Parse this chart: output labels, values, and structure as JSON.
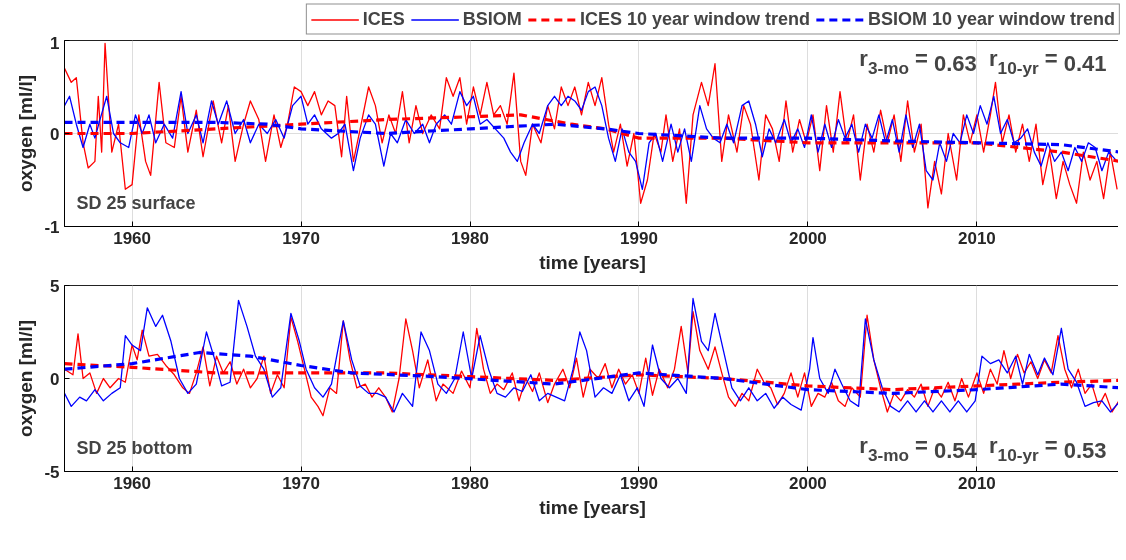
{
  "chart_data": [
    {
      "type": "line",
      "xlabel": "time [years]",
      "ylabel": "oxygen [ml/l]",
      "xlim": [
        1956,
        2018.5
      ],
      "ylim": [
        -1,
        1
      ],
      "xticks": [
        1960,
        1970,
        1980,
        1990,
        2000,
        2010
      ],
      "yticks": [
        -1,
        0,
        1
      ],
      "grid": true,
      "legend": "top",
      "annotations": [
        "SD 25 surface",
        "r$_{3-mo}$ = 0.63  r$_{10-yr}$ = 0.41"
      ],
      "series": [
        {
          "name": "ICES",
          "color": "#ff0000",
          "line_style": "solid",
          "x": [
            1956.0,
            1956.4,
            1956.7,
            1957.1,
            1957.4,
            1957.8,
            1958.0,
            1958.2,
            1958.4,
            1958.8,
            1959.2,
            1959.6,
            1960.0,
            1960.4,
            1960.8,
            1961.1,
            1961.6,
            1962.0,
            1962.5,
            1962.9,
            1963.3,
            1963.8,
            1964.2,
            1964.8,
            1965.3,
            1965.7,
            1966.1,
            1966.6,
            1967.0,
            1967.5,
            1967.9,
            1968.4,
            1968.8,
            1969.2,
            1969.6,
            1970.0,
            1970.4,
            1970.8,
            1971.2,
            1971.6,
            1972.0,
            1972.4,
            1972.7,
            1973.1,
            1973.5,
            1974.0,
            1974.4,
            1974.8,
            1975.2,
            1975.6,
            1976.0,
            1976.4,
            1976.8,
            1977.2,
            1977.7,
            1978.2,
            1978.6,
            1979.0,
            1979.4,
            1979.8,
            1980.2,
            1980.6,
            1981.0,
            1981.4,
            1981.8,
            1982.2,
            1982.6,
            1983.0,
            1983.3,
            1983.7,
            1984.2,
            1984.6,
            1985.0,
            1985.4,
            1985.8,
            1986.2,
            1986.6,
            1987.0,
            1987.4,
            1987.8,
            1988.2,
            1988.5,
            1988.9,
            1989.3,
            1989.7,
            1990.1,
            1990.5,
            1990.9,
            1991.3,
            1991.6,
            1992.0,
            1992.4,
            1992.8,
            1993.2,
            1993.7,
            1994.1,
            1994.5,
            1994.9,
            1995.3,
            1995.8,
            1996.2,
            1996.6,
            1997.1,
            1997.5,
            1997.9,
            1998.3,
            1998.7,
            1999.1,
            1999.5,
            1999.9,
            2000.3,
            2000.7,
            2001.1,
            2001.5,
            2001.9,
            2002.3,
            2002.7,
            2003.1,
            2003.5,
            2003.9,
            2004.3,
            2004.7,
            2005.1,
            2005.5,
            2005.9,
            2006.3,
            2006.7,
            2007.1,
            2007.5,
            2007.9,
            2008.3,
            2008.8,
            2009.2,
            2009.6,
            2010.0,
            2010.4,
            2010.8,
            2011.1,
            2011.5,
            2011.9,
            2012.3,
            2012.7,
            2013.1,
            2013.5,
            2013.9,
            2014.3,
            2014.7,
            2015.1,
            2015.5,
            2015.9,
            2016.3,
            2016.7,
            2017.1,
            2017.5,
            2017.9,
            2018.3
          ],
          "values": [
            0.7,
            0.55,
            0.6,
            -0.1,
            -0.37,
            -0.3,
            0.4,
            -0.2,
            0.97,
            -0.2,
            0.1,
            -0.6,
            -0.55,
            0.2,
            -0.3,
            -0.45,
            0.55,
            -0.1,
            -0.15,
            0.4,
            -0.2,
            0.25,
            -0.25,
            0.35,
            -0.1,
            0.3,
            -0.3,
            0.1,
            0.35,
            0.15,
            -0.3,
            0.2,
            -0.15,
            0.1,
            0.5,
            0.45,
            0.3,
            0.45,
            0.2,
            0.35,
            0.3,
            -0.25,
            0.4,
            -0.3,
            0.05,
            0.5,
            0.3,
            -0.1,
            0.2,
            0.0,
            0.45,
            -0.1,
            0.3,
            0.0,
            0.2,
            0.05,
            0.6,
            0.4,
            0.6,
            0.1,
            0.5,
            0.2,
            0.55,
            0.2,
            0.3,
            0.1,
            0.65,
            -0.3,
            -0.45,
            0.1,
            -0.1,
            0.3,
            0.05,
            0.5,
            0.3,
            0.5,
            0.2,
            0.55,
            0.3,
            0.6,
            0.1,
            -0.2,
            0.1,
            -0.35,
            0.0,
            -0.75,
            -0.5,
            0.0,
            -0.2,
            0.2,
            -0.3,
            0.05,
            -0.75,
            0.2,
            0.55,
            0.3,
            0.75,
            -0.3,
            0.2,
            -0.2,
            0.3,
            0.1,
            -0.5,
            0.2,
            0.05,
            -0.3,
            0.35,
            -0.2,
            0.15,
            -0.1,
            0.2,
            -0.4,
            0.3,
            -0.2,
            0.45,
            -0.1,
            0.2,
            -0.5,
            0.1,
            -0.2,
            0.25,
            -0.1,
            0.2,
            -0.3,
            0.35,
            -0.2,
            0.1,
            -0.8,
            -0.3,
            -0.65,
            0.0,
            -0.5,
            0.2,
            -0.1,
            0.2,
            -0.2,
            0.2,
            0.55,
            -0.1,
            0.2,
            -0.2,
            0.1,
            -0.3,
            0.1,
            -0.55,
            -0.2,
            -0.7,
            -0.3,
            -0.55,
            -0.75,
            -0.2,
            -0.5,
            -0.3,
            -0.7,
            -0.2,
            -0.6
          ]
        },
        {
          "name": "BSIOM",
          "color": "#0000ff",
          "line_style": "solid",
          "x": [
            1956.0,
            1956.3,
            1956.7,
            1957.1,
            1957.5,
            1957.8,
            1958.1,
            1958.5,
            1958.9,
            1959.3,
            1959.8,
            1960.2,
            1960.6,
            1961.0,
            1961.4,
            1961.9,
            1962.4,
            1962.9,
            1963.3,
            1963.8,
            1964.2,
            1964.7,
            1965.1,
            1965.6,
            1966.1,
            1966.6,
            1967.0,
            1967.5,
            1968.0,
            1968.5,
            1969.0,
            1969.5,
            1970.0,
            1970.4,
            1970.8,
            1971.2,
            1971.8,
            1972.2,
            1972.6,
            1973.1,
            1973.5,
            1974.0,
            1974.4,
            1974.9,
            1975.3,
            1975.7,
            1976.2,
            1976.7,
            1977.2,
            1977.6,
            1978.0,
            1978.5,
            1978.9,
            1979.4,
            1979.8,
            1980.2,
            1980.6,
            1981.0,
            1981.5,
            1982.0,
            1982.4,
            1982.8,
            1983.2,
            1983.7,
            1984.1,
            1984.6,
            1985.0,
            1985.4,
            1985.8,
            1986.2,
            1986.6,
            1987.0,
            1987.4,
            1987.8,
            1988.2,
            1988.6,
            1989.0,
            1989.4,
            1989.8,
            1990.2,
            1990.6,
            1991.0,
            1991.4,
            1991.9,
            1992.3,
            1992.7,
            1993.1,
            1993.6,
            1994.0,
            1994.4,
            1994.8,
            1995.2,
            1995.6,
            1996.1,
            1996.5,
            1996.9,
            1997.3,
            1997.7,
            1998.1,
            1998.6,
            1999.0,
            1999.4,
            1999.8,
            2000.2,
            2000.6,
            2001.0,
            2001.4,
            2001.8,
            2002.2,
            2002.6,
            2003.0,
            2003.4,
            2003.8,
            2004.2,
            2004.6,
            2005.0,
            2005.4,
            2005.8,
            2006.2,
            2006.6,
            2007.0,
            2007.4,
            2007.8,
            2008.2,
            2008.6,
            2009.0,
            2009.4,
            2009.8,
            2010.2,
            2010.6,
            2011.0,
            2011.4,
            2011.8,
            2012.2,
            2012.6,
            2013.0,
            2013.4,
            2013.8,
            2014.2,
            2014.6,
            2015.0,
            2015.4,
            2015.8,
            2016.2,
            2016.6,
            2017.0,
            2017.4,
            2017.8,
            2018.3
          ],
          "values": [
            0.3,
            0.4,
            0.1,
            -0.15,
            0.1,
            -0.05,
            0.15,
            0.4,
            0.0,
            -0.1,
            -0.15,
            0.2,
            0.0,
            0.2,
            -0.1,
            0.1,
            -0.05,
            0.45,
            0.0,
            0.2,
            -0.1,
            0.35,
            0.1,
            0.35,
            0.0,
            0.15,
            -0.1,
            0.1,
            0.0,
            0.15,
            -0.05,
            0.3,
            0.4,
            0.1,
            0.2,
            0.05,
            -0.05,
            0.0,
            0.1,
            -0.4,
            -0.05,
            0.2,
            0.1,
            -0.35,
            0.0,
            -0.1,
            0.15,
            0.0,
            0.1,
            -0.1,
            0.1,
            0.2,
            0.1,
            0.45,
            0.3,
            0.4,
            0.1,
            0.15,
            0.05,
            -0.05,
            -0.2,
            -0.3,
            -0.1,
            0.1,
            0.0,
            0.3,
            0.4,
            0.3,
            0.4,
            0.35,
            0.25,
            0.45,
            0.5,
            0.3,
            -0.05,
            -0.3,
            0.05,
            -0.2,
            -0.3,
            -0.6,
            -0.1,
            0.0,
            -0.3,
            0.1,
            -0.2,
            0.05,
            -0.3,
            0.3,
            0.05,
            -0.05,
            -0.1,
            0.1,
            -0.1,
            0.3,
            0.35,
            0.1,
            -0.25,
            0.05,
            -0.1,
            0.15,
            -0.1,
            0.05,
            -0.15,
            0.2,
            -0.2,
            0.1,
            -0.15,
            0.15,
            -0.05,
            0.1,
            -0.2,
            0.1,
            -0.05,
            0.2,
            -0.1,
            0.15,
            -0.2,
            0.2,
            -0.15,
            0.1,
            -0.4,
            -0.5,
            -0.1,
            -0.3,
            0.0,
            -0.1,
            0.2,
            0.0,
            0.3,
            0.1,
            0.4,
            0.0,
            0.15,
            -0.1,
            -0.05,
            0.05,
            -0.2,
            -0.35,
            -0.1,
            -0.3,
            -0.2,
            -0.4,
            -0.15,
            -0.3,
            -0.1,
            -0.15,
            -0.4,
            -0.2,
            -0.3
          ]
        },
        {
          "name": "ICES 10 year window trend",
          "color": "#ff0000",
          "line_style": "dashed",
          "x": [
            1956,
            1960,
            1965,
            1970,
            1975,
            1980,
            1983,
            1986,
            1988,
            1990,
            1995,
            2000,
            2005,
            2010,
            2015,
            2018.5
          ],
          "values": [
            0.0,
            0.0,
            0.05,
            0.1,
            0.15,
            0.18,
            0.2,
            0.1,
            0.05,
            -0.05,
            -0.05,
            -0.1,
            -0.1,
            -0.1,
            -0.2,
            -0.3
          ]
        },
        {
          "name": "BSIOM 10 year window trend",
          "color": "#0000ff",
          "line_style": "dashed",
          "x": [
            1956,
            1960,
            1965,
            1968,
            1970,
            1975,
            1980,
            1985,
            1988,
            1990,
            1995,
            2000,
            2005,
            2010,
            2015,
            2018.5
          ],
          "values": [
            0.12,
            0.12,
            0.12,
            0.1,
            0.05,
            0.0,
            0.05,
            0.1,
            0.05,
            0.0,
            -0.05,
            -0.05,
            -0.08,
            -0.1,
            -0.12,
            -0.2
          ]
        }
      ]
    },
    {
      "type": "line",
      "xlabel": "time [years]",
      "ylabel": "oxygen [ml/l]",
      "xlim": [
        1956,
        2018.5
      ],
      "ylim": [
        -5,
        5
      ],
      "xticks": [
        1960,
        1970,
        1980,
        1990,
        2000,
        2010
      ],
      "yticks": [
        -5,
        0,
        5
      ],
      "grid": true,
      "annotations": [
        "SD 25 bottom",
        "r$_{3-mo}$ = 0.54  r$_{10-yr}$ = 0.53"
      ],
      "series": [
        {
          "color": "#ff0000",
          "line_style": "solid",
          "x": [
            1956.0,
            1956.5,
            1956.8,
            1957.1,
            1957.5,
            1957.9,
            1958.3,
            1958.7,
            1959.2,
            1959.6,
            1960.0,
            1960.3,
            1960.6,
            1961.0,
            1961.5,
            1962.0,
            1962.5,
            1963.0,
            1963.4,
            1963.8,
            1964.2,
            1964.6,
            1965.0,
            1965.4,
            1965.8,
            1966.2,
            1966.6,
            1967.0,
            1967.4,
            1967.8,
            1968.2,
            1968.6,
            1969.0,
            1969.4,
            1969.8,
            1970.2,
            1970.6,
            1971.0,
            1971.3,
            1971.7,
            1972.1,
            1972.5,
            1972.9,
            1973.3,
            1973.8,
            1974.2,
            1974.6,
            1975.0,
            1975.4,
            1975.8,
            1976.2,
            1976.6,
            1977.0,
            1977.5,
            1978.0,
            1978.4,
            1979.0,
            1979.5,
            1980.0,
            1980.4,
            1980.8,
            1981.2,
            1981.6,
            1982.0,
            1982.5,
            1982.9,
            1983.3,
            1983.7,
            1984.1,
            1984.6,
            1985.0,
            1985.5,
            1985.9,
            1986.3,
            1986.7,
            1987.1,
            1987.6,
            1988.0,
            1988.4,
            1988.8,
            1989.2,
            1989.6,
            1990.0,
            1990.4,
            1990.8,
            1991.2,
            1991.7,
            1992.1,
            1992.5,
            1992.9,
            1993.2,
            1993.6,
            1994.1,
            1994.5,
            1994.9,
            1995.3,
            1995.7,
            1996.1,
            1996.5,
            1997.0,
            1997.4,
            1997.8,
            1998.2,
            1998.6,
            1999.0,
            1999.4,
            1999.8,
            2000.2,
            2000.6,
            2001.0,
            2001.4,
            2001.8,
            2002.2,
            2002.6,
            2003.1,
            2003.5,
            2003.9,
            2004.3,
            2004.7,
            2005.1,
            2005.5,
            2005.9,
            2006.3,
            2006.7,
            2007.1,
            2007.5,
            2007.9,
            2008.3,
            2008.7,
            2009.1,
            2009.5,
            2010.0,
            2010.4,
            2010.8,
            2011.2,
            2011.6,
            2012.0,
            2012.4,
            2012.8,
            2013.2,
            2013.6,
            2014.0,
            2014.4,
            2014.8,
            2015.2,
            2015.6,
            2016.0,
            2016.4,
            2016.8,
            2017.2,
            2017.6,
            2018.0,
            2018.4
          ],
          "values": [
            0.5,
            0.2,
            2.4,
            0.0,
            0.3,
            -0.8,
            0.0,
            -0.5,
            0.0,
            -0.2,
            1.8,
            1.0,
            2.6,
            1.2,
            1.3,
            0.7,
            0.2,
            -0.5,
            -0.8,
            0.3,
            1.7,
            -0.4,
            1.2,
            0.3,
            0.9,
            -0.3,
            0.5,
            -0.5,
            0.0,
            1.2,
            -0.8,
            0.2,
            -0.5,
            3.3,
            2.0,
            0.5,
            -1.0,
            -1.5,
            -2.0,
            -0.5,
            -0.8,
            3.1,
            1.0,
            -0.5,
            -0.3,
            -1.0,
            -0.5,
            -1.0,
            -1.8,
            0.0,
            3.2,
            1.5,
            -0.5,
            1.0,
            -1.2,
            -0.3,
            -0.8,
            0.4,
            -0.5,
            2.7,
            0.5,
            -0.8,
            -0.3,
            -0.6,
            0.3,
            -1.2,
            0.0,
            -0.7,
            0.3,
            -1.3,
            -0.3,
            0.5,
            -0.5,
            1.1,
            -1.0,
            0.5,
            0.0,
            0.8,
            -0.5,
            0.5,
            -0.3,
            0.2,
            -0.8,
            1.1,
            -0.9,
            0.5,
            -0.5,
            0.5,
            2.8,
            0.3,
            3.6,
            1.5,
            0.5,
            1.7,
            0.3,
            -1.0,
            -1.5,
            -0.8,
            -1.2,
            0.5,
            -0.2,
            -0.5,
            -1.4,
            -0.8,
            0.3,
            -1.0,
            0.3,
            -1.5,
            -0.8,
            -1.0,
            -0.2,
            -1.2,
            -1.5,
            -0.5,
            -1.0,
            3.4,
            1.0,
            -0.5,
            -1.8,
            -0.8,
            -1.2,
            -0.6,
            -1.0,
            -0.3,
            -1.5,
            -0.5,
            -1.0,
            -0.2,
            -1.2,
            0.0,
            -1.0,
            0.3,
            -0.8,
            0.5,
            -0.3,
            1.5,
            0.0,
            1.3,
            0.3,
            0.9,
            0.0,
            1.0,
            0.3,
            2.3,
            0.5,
            -0.5,
            0.5,
            -0.8,
            -0.3,
            -1.5,
            -0.8,
            -1.8,
            -1.2
          ]
        },
        {
          "color": "#0000ff",
          "line_style": "solid",
          "x": [
            1956.0,
            1956.4,
            1956.9,
            1957.3,
            1957.8,
            1958.3,
            1958.8,
            1959.3,
            1959.6,
            1960.0,
            1960.5,
            1960.9,
            1961.4,
            1961.8,
            1962.3,
            1962.8,
            1963.3,
            1963.8,
            1964.4,
            1964.9,
            1965.3,
            1965.8,
            1966.3,
            1966.8,
            1967.3,
            1967.8,
            1968.3,
            1968.8,
            1969.4,
            1969.9,
            1970.3,
            1970.8,
            1971.3,
            1971.8,
            1972.5,
            1973.0,
            1973.5,
            1974.0,
            1974.5,
            1975.0,
            1975.5,
            1976.0,
            1976.6,
            1977.1,
            1977.6,
            1978.1,
            1978.6,
            1979.1,
            1979.6,
            1980.1,
            1980.6,
            1981.1,
            1981.6,
            1982.1,
            1982.6,
            1983.1,
            1983.6,
            1984.1,
            1984.6,
            1985.1,
            1985.6,
            1986.1,
            1986.5,
            1986.9,
            1987.4,
            1987.9,
            1988.4,
            1988.9,
            1989.4,
            1989.9,
            1990.3,
            1990.8,
            1991.3,
            1991.8,
            1992.3,
            1992.8,
            1993.2,
            1993.7,
            1994.1,
            1994.5,
            1995.0,
            1995.5,
            1996.0,
            1996.5,
            1997.0,
            1997.5,
            1998.0,
            1998.5,
            1999.0,
            1999.6,
            2000.1,
            2000.3,
            2000.7,
            2001.2,
            2001.6,
            2002.0,
            2002.5,
            2003.0,
            2003.4,
            2003.9,
            2004.4,
            2004.9,
            2005.4,
            2005.9,
            2006.4,
            2006.9,
            2007.4,
            2007.9,
            2008.4,
            2008.9,
            2009.4,
            2009.9,
            2010.3,
            2010.8,
            2011.3,
            2011.8,
            2012.3,
            2012.7,
            2013.1,
            2013.6,
            2014.0,
            2014.5,
            2015.0,
            2015.4,
            2015.9,
            2016.4,
            2016.9,
            2017.4,
            2017.9,
            2018.4
          ],
          "values": [
            -0.8,
            -1.5,
            -1.0,
            -1.2,
            -0.6,
            -1.2,
            -0.8,
            -0.5,
            2.3,
            1.8,
            1.5,
            3.8,
            2.8,
            3.4,
            2.0,
            0.0,
            -0.8,
            -0.3,
            2.5,
            1.0,
            -0.4,
            -0.2,
            4.2,
            2.8,
            1.2,
            0.5,
            -1.0,
            -0.5,
            3.5,
            2.0,
            0.5,
            -0.5,
            -1.0,
            -0.3,
            3.1,
            1.0,
            -0.4,
            -0.8,
            -0.8,
            -1.0,
            -1.8,
            -0.8,
            -1.5,
            2.5,
            1.5,
            -0.3,
            -0.8,
            0.0,
            2.5,
            0.0,
            2.3,
            0.5,
            -0.8,
            -1.0,
            -0.5,
            -0.7,
            0.2,
            -1.2,
            -0.8,
            -1.0,
            -1.2,
            0.5,
            2.5,
            1.5,
            -1.0,
            -0.5,
            -0.8,
            0.2,
            -1.2,
            -0.5,
            -1.5,
            1.8,
            0.0,
            -0.5,
            0.0,
            -0.8,
            4.3,
            2.0,
            1.5,
            3.5,
            1.5,
            -0.5,
            -1.2,
            -0.5,
            -1.2,
            -0.8,
            -1.6,
            -1.0,
            -1.4,
            -1.7,
            0.5,
            2.2,
            0.0,
            -0.8,
            0.5,
            -0.3,
            -1.2,
            -1.5,
            3.2,
            1.0,
            -0.5,
            -1.5,
            -1.8,
            -1.2,
            -1.8,
            -1.2,
            -1.8,
            -1.2,
            -1.8,
            -1.2,
            -1.8,
            -1.2,
            1.2,
            0.8,
            1.0,
            0.3,
            1.2,
            -0.3,
            1.3,
            0.2,
            1.1,
            0.2,
            2.7,
            0.5,
            -0.2,
            -1.5,
            -1.3,
            -1.2,
            -1.8,
            -1.3
          ]
        },
        {
          "color": "#ff0000",
          "line_style": "dashed",
          "x": [
            1956,
            1960,
            1965,
            1970,
            1975,
            1980,
            1985,
            1990,
            1995,
            2000,
            2005,
            2010,
            2015,
            2018.5
          ],
          "values": [
            0.8,
            0.6,
            0.3,
            0.3,
            0.3,
            0.1,
            -0.1,
            0.2,
            0.0,
            -0.4,
            -0.6,
            -0.4,
            -0.2,
            -0.1
          ]
        },
        {
          "color": "#0000ff",
          "line_style": "dashed",
          "x": [
            1956,
            1960,
            1964,
            1967,
            1970,
            1973,
            1978,
            1985,
            1990,
            1995,
            2000,
            2005,
            2010,
            2015,
            2018.5
          ],
          "values": [
            0.5,
            0.8,
            1.4,
            1.2,
            0.7,
            0.3,
            0.1,
            -0.3,
            0.3,
            0.0,
            -0.6,
            -0.8,
            -0.6,
            -0.3,
            -0.5
          ]
        }
      ]
    }
  ]
}
